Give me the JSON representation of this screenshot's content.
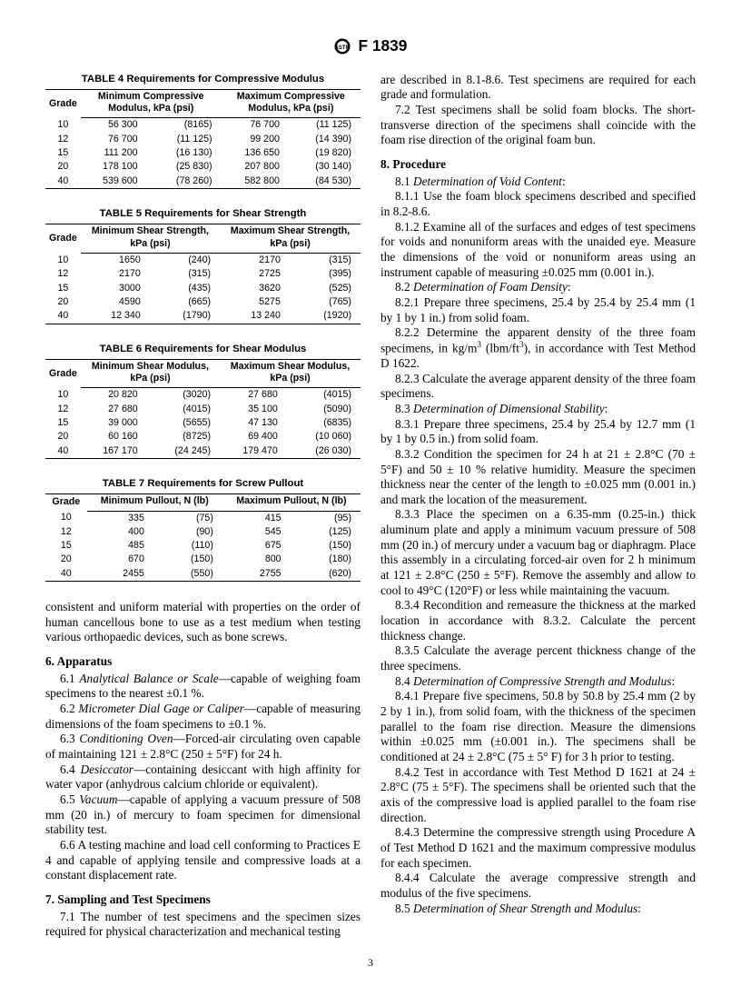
{
  "header": {
    "designation": "F 1839"
  },
  "tables": {
    "t4": {
      "title": "TABLE 4  Requirements for Compressive Modulus",
      "col_grade": "Grade",
      "col_min": "Minimum Compressive Modulus, kPa (psi)",
      "col_max": "Maximum Compressive Modulus, kPa (psi)",
      "rows": [
        {
          "g": "10",
          "min_k": "56 300",
          "min_p": "(8165)",
          "max_k": "76 700",
          "max_p": "(11 125)"
        },
        {
          "g": "12",
          "min_k": "76 700",
          "min_p": "(11 125)",
          "max_k": "99 200",
          "max_p": "(14 390)"
        },
        {
          "g": "15",
          "min_k": "111 200",
          "min_p": "(16 130)",
          "max_k": "136 650",
          "max_p": "(19 820)"
        },
        {
          "g": "20",
          "min_k": "178 100",
          "min_p": "(25 830)",
          "max_k": "207 800",
          "max_p": "(30 140)"
        },
        {
          "g": "40",
          "min_k": "539 600",
          "min_p": "(78 260)",
          "max_k": "582 800",
          "max_p": "(84 530)"
        }
      ]
    },
    "t5": {
      "title": "TABLE 5  Requirements for Shear Strength",
      "col_grade": "Grade",
      "col_min": "Minimum Shear Strength, kPa (psi)",
      "col_max": "Maximum Shear Strength, kPa (psi)",
      "rows": [
        {
          "g": "10",
          "min_k": "1650",
          "min_p": "(240)",
          "max_k": "2170",
          "max_p": "(315)"
        },
        {
          "g": "12",
          "min_k": "2170",
          "min_p": "(315)",
          "max_k": "2725",
          "max_p": "(395)"
        },
        {
          "g": "15",
          "min_k": "3000",
          "min_p": "(435)",
          "max_k": "3620",
          "max_p": "(525)"
        },
        {
          "g": "20",
          "min_k": "4590",
          "min_p": "(665)",
          "max_k": "5275",
          "max_p": "(765)"
        },
        {
          "g": "40",
          "min_k": "12 340",
          "min_p": "(1790)",
          "max_k": "13 240",
          "max_p": "(1920)"
        }
      ]
    },
    "t6": {
      "title": "TABLE 6  Requirements for Shear Modulus",
      "col_grade": "Grade",
      "col_min": "Minimum Shear Modulus, kPa (psi)",
      "col_max": "Maximum Shear Modulus, kPa (psi)",
      "rows": [
        {
          "g": "10",
          "min_k": "20 820",
          "min_p": "(3020)",
          "max_k": "27 680",
          "max_p": "(4015)"
        },
        {
          "g": "12",
          "min_k": "27 680",
          "min_p": "(4015)",
          "max_k": "35 100",
          "max_p": "(5090)"
        },
        {
          "g": "15",
          "min_k": "39 000",
          "min_p": "(5655)",
          "max_k": "47 130",
          "max_p": "(6835)"
        },
        {
          "g": "20",
          "min_k": "60 160",
          "min_p": "(8725)",
          "max_k": "69 400",
          "max_p": "(10 060)"
        },
        {
          "g": "40",
          "min_k": "167 170",
          "min_p": "(24 245)",
          "max_k": "179 470",
          "max_p": "(26 030)"
        }
      ]
    },
    "t7": {
      "title": "TABLE 7  Requirements for Screw Pullout",
      "col_grade": "Grade",
      "col_min": "Minimum Pullout, N (lb)",
      "col_max": "Maximum Pullout, N (lb)",
      "rows": [
        {
          "g": "10",
          "min_k": "335",
          "min_p": "(75)",
          "max_k": "415",
          "max_p": "(95)"
        },
        {
          "g": "12",
          "min_k": "400",
          "min_p": "(90)",
          "max_k": "545",
          "max_p": "(125)"
        },
        {
          "g": "15",
          "min_k": "485",
          "min_p": "(110)",
          "max_k": "675",
          "max_p": "(150)"
        },
        {
          "g": "20",
          "min_k": "670",
          "min_p": "(150)",
          "max_k": "800",
          "max_p": "(180)"
        },
        {
          "g": "40",
          "min_k": "2455",
          "min_p": "(550)",
          "max_k": "2755",
          "max_p": "(620)"
        }
      ]
    }
  },
  "left": {
    "p_intro": "consistent and uniform material with properties on the order of human cancellous bone to use as a test medium when testing various orthopaedic devices, such as bone screws.",
    "s6_head": "6. Apparatus",
    "s6_1a": "6.1 ",
    "s6_1i": "Analytical Balance or Scale",
    "s6_1b": "—capable of weighing foam specimens to the nearest ±0.1 %.",
    "s6_2a": "6.2 ",
    "s6_2i": "Micrometer Dial Gage or Caliper",
    "s6_2b": "—capable of measuring dimensions of the foam specimens to ±0.1 %.",
    "s6_3a": "6.3 ",
    "s6_3i": "Conditioning Oven",
    "s6_3b": "—Forced-air circulating oven capable of maintaining 121 ± 2.8°C (250 ± 5°F) for 24 h.",
    "s6_4a": "6.4 ",
    "s6_4i": "Desiccator",
    "s6_4b": "—containing desiccant with high affinity for water vapor (anhydrous calcium chloride or equivalent).",
    "s6_5a": "6.5 ",
    "s6_5i": "Vacuum",
    "s6_5b": "—capable of applying a vacuum pressure of 508 mm (20 in.) of mercury to foam specimen for dimensional stability test.",
    "s6_6": "6.6 A testing machine and load cell conforming to Practices E 4 and capable of applying tensile and compressive loads at a constant displacement rate.",
    "s7_head": "7. Sampling and Test Specimens",
    "s7_1": "7.1 The number of test specimens and the specimen sizes required for physical characterization and mechanical testing"
  },
  "right": {
    "p_cont": "are described in 8.1-8.6. Test specimens are required for each grade and formulation.",
    "s7_2": "7.2 Test specimens shall be solid foam blocks. The short-transverse direction of the specimens shall coincide with the foam rise direction of the original foam bun.",
    "s8_head": "8. Procedure",
    "s8_1a": "8.1 ",
    "s8_1i": "Determination of Void Content",
    "s8_1c": ":",
    "s8_1_1": "8.1.1 Use the foam block specimens described and specified in 8.2-8.6.",
    "s8_1_2": "8.1.2 Examine all of the surfaces and edges of test specimens for voids and nonuniform areas with the unaided eye. Measure the dimensions of the void or nonuniform areas using an instrument capable of measuring ±0.025 mm (0.001 in.).",
    "s8_2a": "8.2 ",
    "s8_2i": "Determination of Foam Density",
    "s8_2c": ":",
    "s8_2_1": "8.2.1 Prepare three specimens, 25.4 by 25.4 by 25.4 mm (1 by 1 by 1 in.) from solid foam.",
    "s8_2_2a": "8.2.2 Determine the apparent density of the three foam specimens, in kg/m",
    "s8_2_2b": " (lbm/ft",
    "s8_2_2c": "), in accordance with Test Method D 1622.",
    "s8_2_3": "8.2.3 Calculate the average apparent density of the three foam specimens.",
    "s8_3a": "8.3 ",
    "s8_3i": "Determination of Dimensional Stability",
    "s8_3c": ":",
    "s8_3_1": "8.3.1 Prepare three specimens, 25.4 by 25.4 by 12.7 mm (1 by 1 by 0.5 in.) from solid foam.",
    "s8_3_2": "8.3.2 Condition the specimen for 24 h at 21 ± 2.8°C (70 ± 5°F) and 50 ± 10 % relative humidity. Measure the specimen thickness near the center of the length to ±0.025 mm (0.001 in.) and mark the location of the measurement.",
    "s8_3_3": "8.3.3 Place the specimen on a 6.35-mm (0.25-in.) thick aluminum plate and apply a minimum vacuum pressure of 508 mm (20 in.) of mercury under a vacuum bag or diaphragm. Place this assembly in a circulating forced-air oven for 2 h minimum at 121 ± 2.8°C (250 ± 5°F). Remove the assembly and allow to cool to 49°C (120°F) or less while maintaining the vacuum.",
    "s8_3_4": "8.3.4 Recondition and remeasure the thickness at the marked location in accordance with 8.3.2. Calculate the percent thickness change.",
    "s8_3_5": "8.3.5 Calculate the average percent thickness change of the three specimens.",
    "s8_4a": "8.4 ",
    "s8_4i": "Determination of Compressive Strength and Modulus",
    "s8_4c": ":",
    "s8_4_1": "8.4.1 Prepare five specimens, 50.8 by 50.8 by 25.4 mm (2 by 2 by 1 in.), from solid foam, with the thickness of the specimen parallel to the foam rise direction. Measure the dimensions within ±0.025 mm (±0.001 in.). The specimens shall be conditioned at 24 ± 2.8°C (75 ± 5° F) for 3 h prior to testing.",
    "s8_4_2": "8.4.2 Test in accordance with Test Method D 1621 at 24 ± 2.8°C (75 ± 5°F). The specimens shall be oriented such that the axis of the compressive load is applied parallel to the foam rise direction.",
    "s8_4_3": "8.4.3 Determine the compressive strength using Procedure A of Test Method D 1621 and the maximum compressive modulus for each specimen.",
    "s8_4_4": "8.4.4 Calculate the average compressive strength and modulus of the five specimens.",
    "s8_5a": "8.5 ",
    "s8_5i": "Determination of Shear Strength and Modulus",
    "s8_5c": ":"
  },
  "page_number": "3"
}
